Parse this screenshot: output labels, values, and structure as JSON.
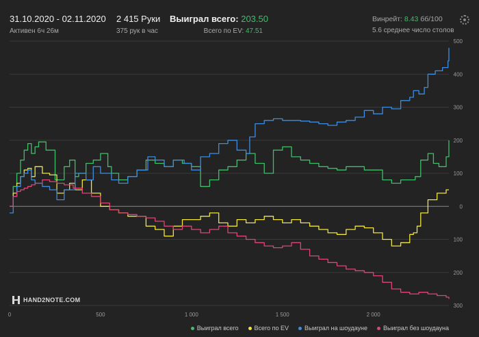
{
  "header": {
    "date_range": "31.10.2020 - 02.11.2020",
    "active_time": "Активен 6ч 26м",
    "hands_title": "2 415 Руки",
    "hands_rate": "375 рук в час",
    "won_label": "Выиграл всего:",
    "won_value": "203.50",
    "ev_label": "Всего по EV:",
    "ev_value": "47.51",
    "winrate_label": "Винрейт:",
    "winrate_value": "8.43",
    "winrate_unit": "бб/100",
    "avg_tables": "5.6 среднее число столов"
  },
  "logo": {
    "text": "HAND2NOTE.COM"
  },
  "colors": {
    "green": "#3fbf6a",
    "yellow": "#f2e63a",
    "blue": "#3d8de0",
    "pink": "#e0457a",
    "grid": "#3a3a3a",
    "background": "#232323"
  },
  "legend": [
    {
      "name": "Выиграл всего",
      "color": "#3fbf6a"
    },
    {
      "name": "Всего по EV",
      "color": "#f2e63a"
    },
    {
      "name": "Выиграл на шоудауне",
      "color": "#3d8de0"
    },
    {
      "name": "Выиграл без шоудауна",
      "color": "#e0457a"
    }
  ],
  "chart_data": {
    "type": "line",
    "x_ticks": [
      0,
      500,
      1000,
      1500,
      2000
    ],
    "x_tick_labels": [
      "0",
      "500",
      "1 000",
      "1 500",
      "2 000"
    ],
    "y_ticks": [
      500,
      400,
      300,
      200,
      100,
      0,
      -100,
      -200,
      -300
    ],
    "y_tick_labels": [
      "500",
      "400",
      "300",
      "200",
      "100",
      "0",
      "100",
      "200",
      "300"
    ],
    "xlim": [
      0,
      2415
    ],
    "ylim": [
      -300,
      500
    ],
    "grid": true,
    "legend_position": "bottom-right",
    "series": [
      {
        "name": "Выиграл всего",
        "color": "#3fbf6a",
        "x": [
          0,
          20,
          40,
          60,
          80,
          100,
          120,
          140,
          160,
          200,
          250,
          300,
          330,
          360,
          380,
          420,
          460,
          500,
          540,
          560,
          600,
          650,
          700,
          750,
          800,
          850,
          900,
          950,
          1000,
          1050,
          1100,
          1150,
          1200,
          1250,
          1300,
          1350,
          1400,
          1450,
          1500,
          1550,
          1600,
          1650,
          1700,
          1750,
          1800,
          1850,
          1900,
          1950,
          2000,
          2050,
          2100,
          2150,
          2200,
          2230,
          2260,
          2300,
          2330,
          2360,
          2400,
          2415
        ],
        "y": [
          0,
          60,
          100,
          140,
          170,
          190,
          160,
          180,
          195,
          170,
          80,
          120,
          140,
          90,
          100,
          130,
          140,
          160,
          120,
          100,
          80,
          90,
          110,
          140,
          130,
          120,
          140,
          130,
          120,
          60,
          80,
          110,
          120,
          140,
          160,
          130,
          100,
          170,
          180,
          150,
          140,
          130,
          120,
          115,
          110,
          120,
          120,
          110,
          110,
          80,
          70,
          80,
          80,
          90,
          140,
          160,
          130,
          120,
          150,
          200
        ]
      },
      {
        "name": "Всего по EV",
        "color": "#f2e63a",
        "x": [
          0,
          20,
          40,
          60,
          80,
          100,
          120,
          140,
          180,
          220,
          260,
          300,
          330,
          360,
          400,
          450,
          500,
          550,
          600,
          650,
          700,
          750,
          800,
          850,
          900,
          950,
          1000,
          1050,
          1100,
          1150,
          1200,
          1250,
          1300,
          1350,
          1400,
          1450,
          1500,
          1550,
          1600,
          1650,
          1700,
          1750,
          1800,
          1850,
          1900,
          1950,
          2000,
          2050,
          2100,
          2150,
          2200,
          2220,
          2240,
          2260,
          2300,
          2350,
          2400,
          2415
        ],
        "y": [
          0,
          40,
          70,
          90,
          110,
          115,
          90,
          120,
          100,
          95,
          40,
          50,
          70,
          50,
          80,
          40,
          0,
          -10,
          -20,
          -30,
          -30,
          -60,
          -70,
          -90,
          -60,
          -40,
          -40,
          -30,
          -20,
          -50,
          -60,
          -40,
          -50,
          -40,
          -30,
          -40,
          -50,
          -40,
          -50,
          -60,
          -70,
          -80,
          -85,
          -70,
          -60,
          -65,
          -80,
          -100,
          -120,
          -110,
          -85,
          -80,
          -60,
          -20,
          20,
          40,
          50,
          50
        ]
      },
      {
        "name": "Выиграл на шоудауне",
        "color": "#3d8de0",
        "x": [
          0,
          20,
          40,
          60,
          80,
          100,
          120,
          140,
          180,
          220,
          260,
          300,
          360,
          420,
          460,
          500,
          560,
          600,
          650,
          700,
          760,
          800,
          850,
          900,
          960,
          1000,
          1050,
          1100,
          1150,
          1200,
          1250,
          1300,
          1320,
          1350,
          1400,
          1450,
          1500,
          1550,
          1600,
          1650,
          1700,
          1750,
          1800,
          1850,
          1900,
          1950,
          2000,
          2050,
          2100,
          2150,
          2200,
          2220,
          2250,
          2280,
          2300,
          2340,
          2380,
          2410,
          2415
        ],
        "y": [
          -20,
          30,
          60,
          90,
          100,
          110,
          80,
          70,
          60,
          50,
          20,
          50,
          100,
          80,
          120,
          100,
          80,
          70,
          90,
          110,
          150,
          140,
          120,
          140,
          130,
          110,
          150,
          160,
          190,
          200,
          170,
          160,
          210,
          250,
          260,
          265,
          260,
          260,
          258,
          255,
          250,
          245,
          255,
          260,
          270,
          290,
          280,
          300,
          295,
          320,
          330,
          350,
          340,
          360,
          400,
          410,
          420,
          440,
          480
        ]
      },
      {
        "name": "Выиграл без шоудауна",
        "color": "#e0457a",
        "x": [
          0,
          20,
          40,
          60,
          80,
          100,
          120,
          140,
          180,
          220,
          260,
          300,
          350,
          400,
          450,
          500,
          550,
          600,
          650,
          700,
          750,
          800,
          850,
          900,
          950,
          1000,
          1050,
          1100,
          1150,
          1200,
          1250,
          1300,
          1350,
          1400,
          1450,
          1500,
          1550,
          1600,
          1650,
          1700,
          1750,
          1800,
          1850,
          1900,
          1950,
          2000,
          2050,
          2100,
          2150,
          2200,
          2250,
          2300,
          2350,
          2400,
          2415
        ],
        "y": [
          0,
          30,
          45,
          50,
          55,
          60,
          65,
          70,
          80,
          75,
          70,
          65,
          55,
          40,
          30,
          10,
          -10,
          -20,
          -25,
          -30,
          -35,
          -45,
          -60,
          -70,
          -60,
          -70,
          -80,
          -70,
          -60,
          -80,
          -90,
          -100,
          -110,
          -120,
          -125,
          -120,
          -110,
          -130,
          -150,
          -160,
          -170,
          -180,
          -190,
          -195,
          -200,
          -210,
          -230,
          -250,
          -260,
          -265,
          -260,
          -265,
          -270,
          -275,
          -280
        ]
      }
    ]
  }
}
